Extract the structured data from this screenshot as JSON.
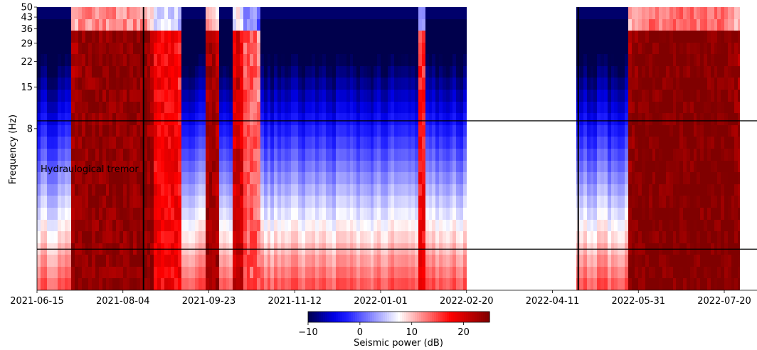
{
  "chart_data": {
    "type": "heatmap",
    "title": "",
    "ylabel": "Frequency (Hz)",
    "xlabel": "",
    "y_scale": "log",
    "ylim": [
      0.7,
      50
    ],
    "xlim": [
      "2021-06-15",
      "2022-07-29"
    ],
    "y_ticks": [
      50,
      43,
      36,
      29,
      22,
      15,
      8
    ],
    "x_ticks": [
      "2021-06-15",
      "2021-08-04",
      "2021-09-23",
      "2021-11-12",
      "2022-01-01",
      "2022-02-20",
      "2022-04-11",
      "2022-05-31",
      "2022-07-20"
    ],
    "data_gaps": [
      [
        "2022-02-20",
        "2022-04-25"
      ]
    ],
    "data_periods": [
      [
        "2021-06-15",
        "2022-02-20"
      ],
      [
        "2022-04-25",
        "2022-07-29"
      ]
    ],
    "horizontal_lines_hz": [
      9,
      1.3
    ],
    "vertical_lines": [
      "2021-08-16",
      "2022-04-26"
    ],
    "annotation": "Hydraulogical tremor",
    "colorbar": {
      "label": "Seismic power (dB)",
      "min": -10,
      "max": 25,
      "ticks": [
        -10,
        0,
        10,
        20
      ],
      "tick_labels": [
        "−10",
        "0",
        "10",
        "20"
      ],
      "colormap": "seismic"
    },
    "active_episodes": [
      {
        "start": "2021-07-05",
        "end": "2021-08-20",
        "peak_db": 24
      },
      {
        "start": "2021-08-20",
        "end": "2021-09-05",
        "peak_db": 18
      },
      {
        "start": "2021-09-20",
        "end": "2021-09-27",
        "peak_db": 23
      },
      {
        "start": "2021-10-07",
        "end": "2021-10-11",
        "peak_db": 21
      },
      {
        "start": "2021-10-12",
        "end": "2021-10-21",
        "peak_db": 14
      },
      {
        "start": "2022-01-23",
        "end": "2022-01-25",
        "peak_db": 18
      },
      {
        "start": "2022-05-25",
        "end": "2022-07-28",
        "peak_db": 25
      }
    ]
  }
}
